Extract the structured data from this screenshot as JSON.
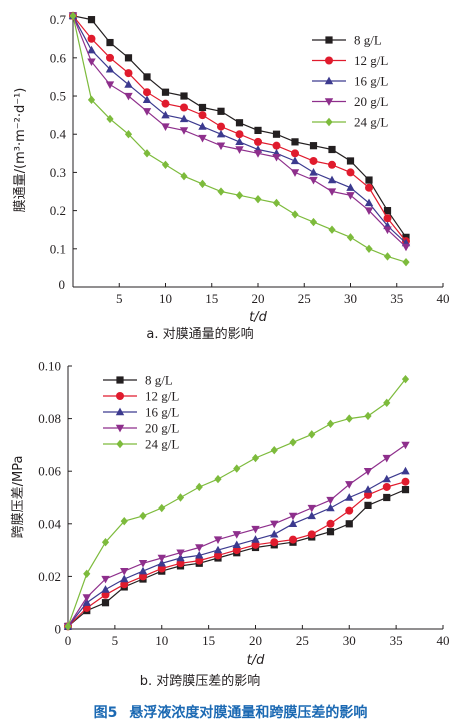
{
  "figure": {
    "caption_label": "图5",
    "caption_text": "悬浮液浓度对膜通量和跨膜压差的影响"
  },
  "chart_data": [
    {
      "type": "line",
      "subtitle": "a. 对膜通量的影响",
      "xlabel": "t/d",
      "ylabel": "膜通量/(m³·m⁻²·d⁻¹)",
      "xlim": [
        0,
        40
      ],
      "ylim": [
        0,
        0.72
      ],
      "xticks": [
        "0",
        "5",
        "10",
        "15",
        "20",
        "25",
        "30",
        "35",
        "40"
      ],
      "yticks": [
        "0.1",
        "0.2",
        "0.3",
        "0.4",
        "0.5",
        "0.6",
        "0.7"
      ],
      "x": [
        0,
        2,
        4,
        6,
        8,
        10,
        12,
        14,
        16,
        18,
        20,
        22,
        24,
        26,
        28,
        30,
        32,
        34,
        36
      ],
      "legend_position": "top-right",
      "grid": false,
      "series": [
        {
          "name": "8 g/L",
          "color": "#231f20",
          "marker": "square",
          "values": [
            0.71,
            0.7,
            0.64,
            0.6,
            0.55,
            0.51,
            0.5,
            0.47,
            0.46,
            0.43,
            0.41,
            0.4,
            0.38,
            0.37,
            0.36,
            0.33,
            0.28,
            0.2,
            0.13
          ]
        },
        {
          "name": "12 g/L",
          "color": "#e01b2d",
          "marker": "circle",
          "values": [
            0.71,
            0.65,
            0.6,
            0.56,
            0.51,
            0.48,
            0.47,
            0.45,
            0.42,
            0.4,
            0.38,
            0.37,
            0.35,
            0.33,
            0.32,
            0.3,
            0.26,
            0.18,
            0.12
          ]
        },
        {
          "name": "16 g/L",
          "color": "#3c3a8f",
          "marker": "triangle",
          "values": [
            0.71,
            0.62,
            0.57,
            0.53,
            0.49,
            0.45,
            0.44,
            0.42,
            0.4,
            0.38,
            0.36,
            0.35,
            0.33,
            0.3,
            0.28,
            0.26,
            0.22,
            0.16,
            0.115
          ]
        },
        {
          "name": "20 g/L",
          "color": "#8e2f8c",
          "marker": "triangle-down",
          "values": [
            0.71,
            0.59,
            0.53,
            0.5,
            0.46,
            0.42,
            0.41,
            0.39,
            0.37,
            0.36,
            0.35,
            0.34,
            0.3,
            0.28,
            0.25,
            0.24,
            0.2,
            0.15,
            0.105
          ]
        },
        {
          "name": "24 g/L",
          "color": "#7dbb3c",
          "marker": "diamond",
          "values": [
            0.71,
            0.49,
            0.44,
            0.4,
            0.35,
            0.32,
            0.29,
            0.27,
            0.25,
            0.24,
            0.23,
            0.22,
            0.19,
            0.17,
            0.15,
            0.13,
            0.1,
            0.08,
            0.065
          ]
        }
      ]
    },
    {
      "type": "line",
      "subtitle": "b. 对跨膜压差的影响",
      "xlabel": "t/d",
      "ylabel": "跨膜压差/MPa",
      "xlim": [
        0,
        40
      ],
      "ylim": [
        0,
        0.1
      ],
      "xticks": [
        "0",
        "5",
        "10",
        "15",
        "20",
        "25",
        "30",
        "35",
        "40"
      ],
      "yticks": [
        "0",
        "0.02",
        "0.04",
        "0.06",
        "0.08",
        "0.10"
      ],
      "x": [
        0,
        2,
        4,
        6,
        8,
        10,
        12,
        14,
        16,
        18,
        20,
        22,
        24,
        26,
        28,
        30,
        32,
        34,
        36
      ],
      "legend_position": "top-left",
      "grid": false,
      "series": [
        {
          "name": "8 g/L",
          "color": "#231f20",
          "marker": "square",
          "values": [
            0.001,
            0.007,
            0.01,
            0.016,
            0.019,
            0.022,
            0.024,
            0.025,
            0.027,
            0.029,
            0.031,
            0.032,
            0.033,
            0.035,
            0.037,
            0.04,
            0.047,
            0.05,
            0.053
          ]
        },
        {
          "name": "12 g/L",
          "color": "#e01b2d",
          "marker": "circle",
          "values": [
            0.001,
            0.008,
            0.013,
            0.017,
            0.02,
            0.023,
            0.025,
            0.026,
            0.028,
            0.03,
            0.032,
            0.033,
            0.034,
            0.036,
            0.04,
            0.045,
            0.051,
            0.054,
            0.056
          ]
        },
        {
          "name": "16 g/L",
          "color": "#3c3a8f",
          "marker": "triangle",
          "values": [
            0.001,
            0.01,
            0.015,
            0.019,
            0.022,
            0.025,
            0.027,
            0.028,
            0.03,
            0.032,
            0.034,
            0.036,
            0.04,
            0.043,
            0.046,
            0.05,
            0.053,
            0.057,
            0.06
          ]
        },
        {
          "name": "20 g/L",
          "color": "#8e2f8c",
          "marker": "triangle-down",
          "values": [
            0.001,
            0.012,
            0.019,
            0.022,
            0.025,
            0.027,
            0.029,
            0.031,
            0.034,
            0.036,
            0.038,
            0.04,
            0.043,
            0.046,
            0.049,
            0.055,
            0.06,
            0.065,
            0.07
          ]
        },
        {
          "name": "24 g/L",
          "color": "#7dbb3c",
          "marker": "diamond",
          "values": [
            0.001,
            0.021,
            0.033,
            0.041,
            0.043,
            0.046,
            0.05,
            0.054,
            0.057,
            0.061,
            0.065,
            0.068,
            0.071,
            0.074,
            0.078,
            0.08,
            0.081,
            0.086,
            0.095
          ]
        }
      ]
    }
  ]
}
